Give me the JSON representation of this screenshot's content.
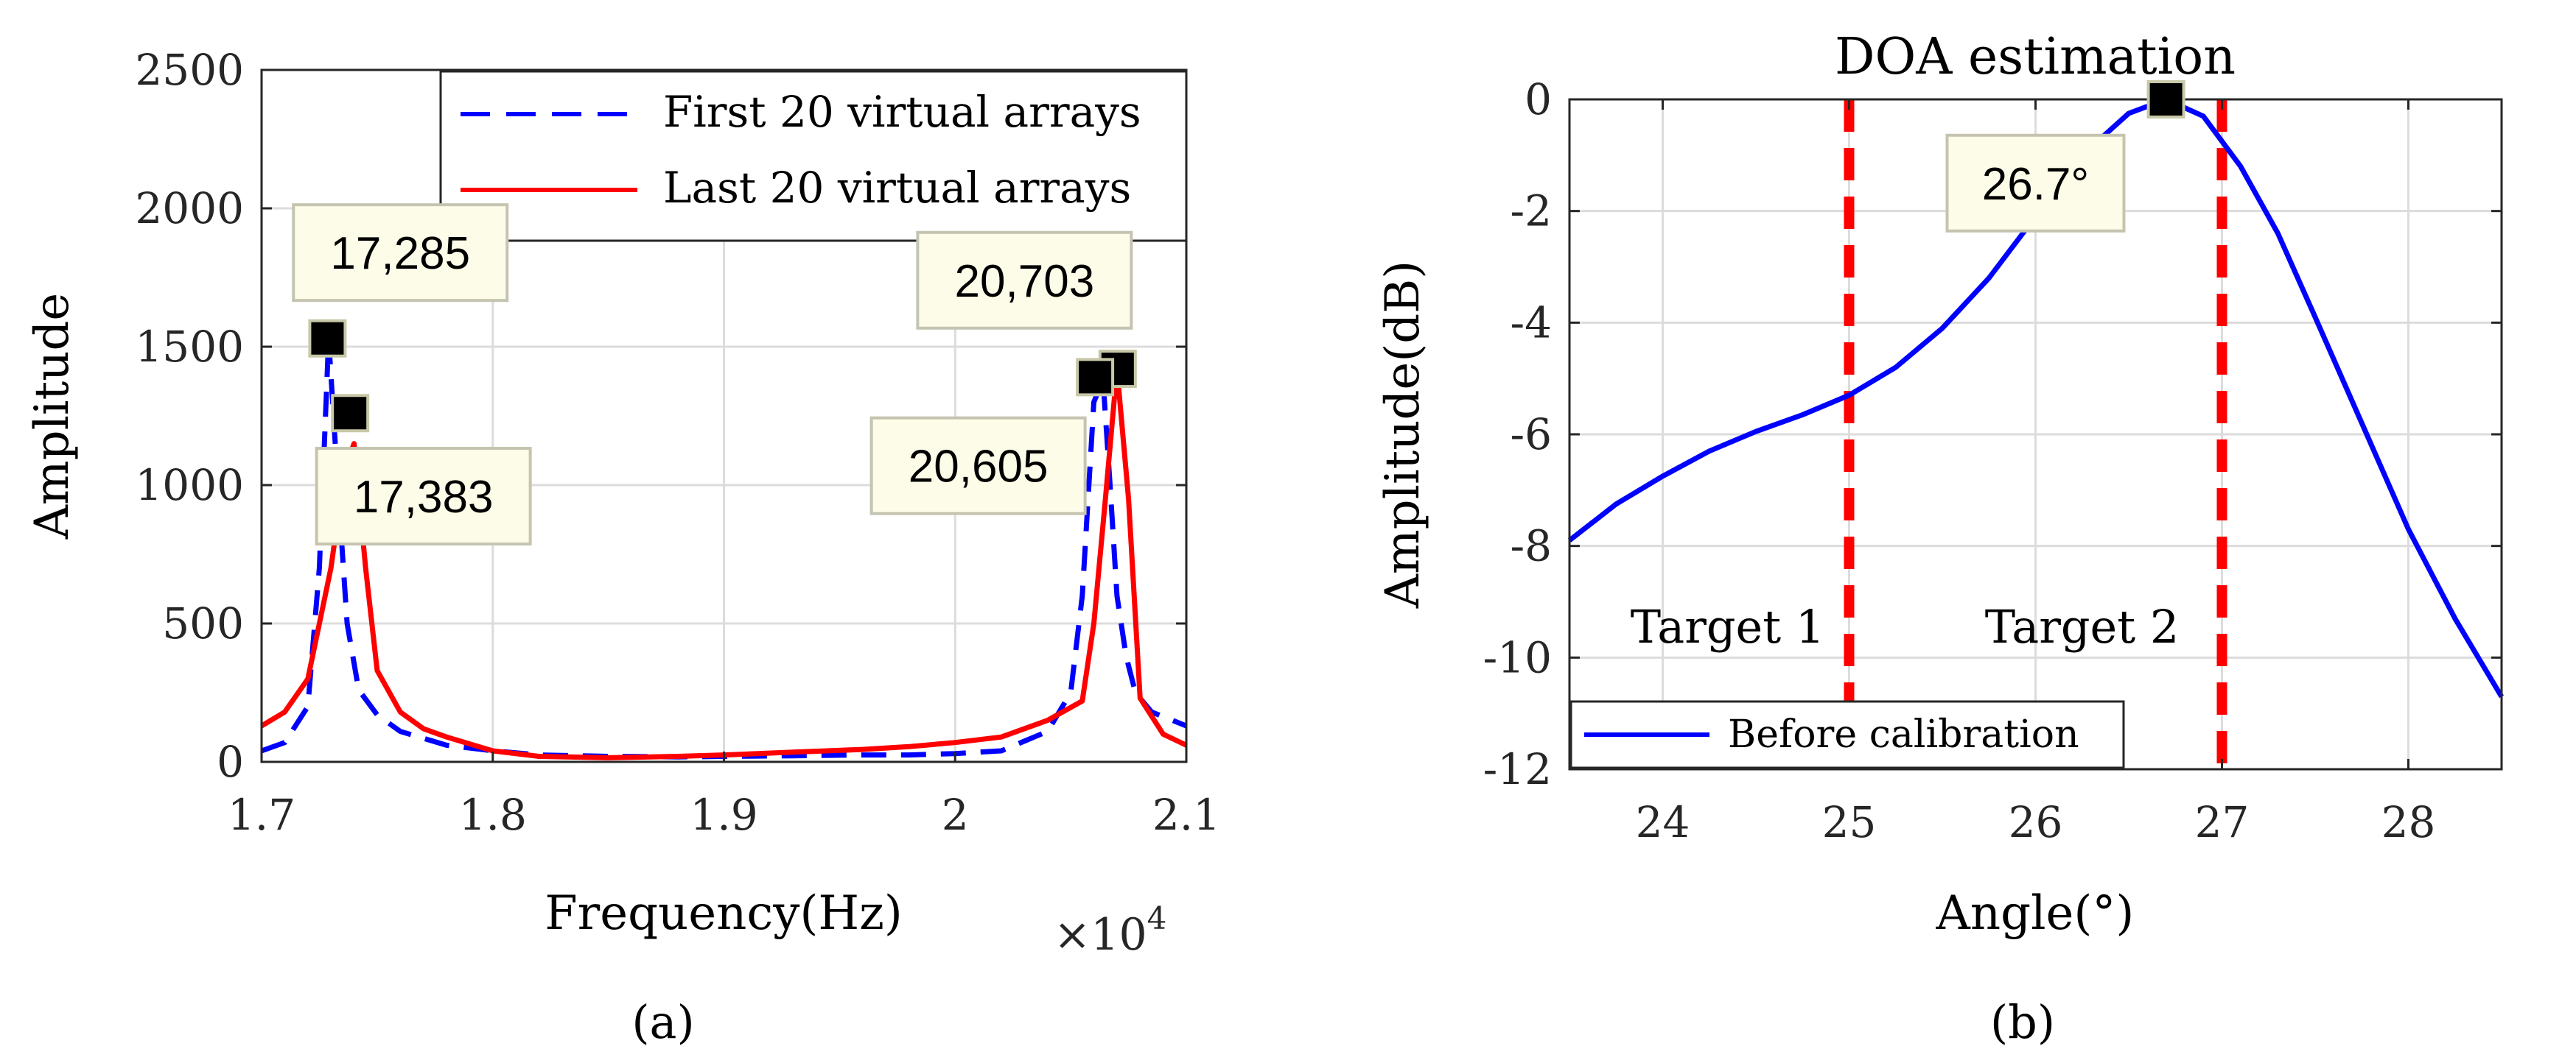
{
  "chart_data": [
    {
      "type": "line",
      "panel_label": "(a)",
      "title": "",
      "xlabel": "Frequency(Hz)",
      "ylabel": "Amplitude",
      "x_multiplier": "×10",
      "x_multiplier_exp": "4",
      "xlim": [
        1.7,
        2.1
      ],
      "ylim": [
        0,
        2500
      ],
      "xticks": [
        1.7,
        1.8,
        1.9,
        2.0,
        2.1
      ],
      "xtick_labels": [
        "1.7",
        "1.8",
        "1.9",
        "2",
        "2.1"
      ],
      "yticks": [
        0,
        500,
        1000,
        1500,
        2000,
        2500
      ],
      "ytick_labels": [
        "0",
        "500",
        "1000",
        "1500",
        "2000",
        "2500"
      ],
      "grid": true,
      "legend_position": "top-right",
      "series": [
        {
          "name": "First 20 virtual arrays",
          "color": "#0000ff",
          "style": "dashed",
          "x": [
            1.7,
            1.71,
            1.72,
            1.725,
            1.729,
            1.733,
            1.737,
            1.742,
            1.75,
            1.76,
            1.78,
            1.8,
            1.82,
            1.85,
            1.88,
            1.9,
            1.93,
            1.96,
            1.98,
            2.0,
            2.02,
            2.04,
            2.05,
            2.055,
            2.06,
            2.064,
            2.067,
            2.07,
            2.074,
            2.078,
            2.085,
            2.1
          ],
          "values": [
            40,
            70,
            200,
            700,
            1530,
            1000,
            500,
            260,
            170,
            110,
            60,
            40,
            25,
            20,
            18,
            20,
            22,
            25,
            25,
            30,
            40,
            110,
            250,
            600,
            1300,
            1380,
            1000,
            600,
            380,
            250,
            180,
            130
          ]
        },
        {
          "name": "Last 20 virtual arrays",
          "color": "#ff0000",
          "style": "solid",
          "x": [
            1.7,
            1.71,
            1.72,
            1.73,
            1.736,
            1.74,
            1.745,
            1.75,
            1.76,
            1.77,
            1.78,
            1.8,
            1.82,
            1.85,
            1.88,
            1.9,
            1.93,
            1.96,
            1.98,
            2.0,
            2.02,
            2.04,
            2.055,
            2.06,
            2.065,
            2.07,
            2.075,
            2.08,
            2.09,
            2.1
          ],
          "values": [
            130,
            180,
            300,
            700,
            1060,
            1150,
            700,
            330,
            180,
            120,
            90,
            40,
            20,
            15,
            20,
            25,
            35,
            45,
            55,
            70,
            90,
            150,
            220,
            500,
            950,
            1420,
            950,
            230,
            100,
            60
          ]
        }
      ],
      "annotations": [
        {
          "label": "17,285",
          "x": 1.7285,
          "y": 1530,
          "box_x": 1.76,
          "box_y": 1840
        },
        {
          "label": "17,383",
          "x": 1.7383,
          "y": 1260,
          "box_x": 1.77,
          "box_y": 960
        },
        {
          "label": "20,703",
          "x": 2.0703,
          "y": 1420,
          "box_x": 2.03,
          "box_y": 1740
        },
        {
          "label": "20,605",
          "x": 2.0605,
          "y": 1390,
          "box_x": 2.01,
          "box_y": 1070
        }
      ]
    },
    {
      "type": "line",
      "panel_label": "(b)",
      "title": "DOA estimation",
      "xlabel": "Angle(°)",
      "ylabel": "Amplitude(dB)",
      "xlim": [
        23.5,
        28.5
      ],
      "ylim": [
        -12,
        0
      ],
      "xticks": [
        24,
        25,
        26,
        27,
        28
      ],
      "xtick_labels": [
        "24",
        "25",
        "26",
        "27",
        "28"
      ],
      "yticks": [
        0,
        -2,
        -4,
        -6,
        -8,
        -10,
        -12
      ],
      "ytick_labels": [
        "0",
        "-2",
        "-4",
        "-6",
        "-8",
        "-10",
        "-12"
      ],
      "grid": true,
      "legend_position": "bottom-left",
      "series": [
        {
          "name": "Before calibration",
          "color": "#0000ff",
          "style": "solid",
          "x": [
            23.5,
            23.75,
            24.0,
            24.25,
            24.5,
            24.75,
            25.0,
            25.25,
            25.5,
            25.75,
            26.0,
            26.25,
            26.5,
            26.7,
            26.9,
            27.1,
            27.3,
            27.5,
            27.75,
            28.0,
            28.25,
            28.5
          ],
          "values": [
            -7.9,
            -7.25,
            -6.75,
            -6.3,
            -5.95,
            -5.65,
            -5.3,
            -4.8,
            -4.1,
            -3.2,
            -2.1,
            -1.0,
            -0.25,
            0,
            -0.3,
            -1.2,
            -2.4,
            -3.9,
            -5.8,
            -7.7,
            -9.3,
            -10.7
          ]
        }
      ],
      "vertical_markers": [
        {
          "x": 25,
          "color": "#ff0000",
          "style": "dashed",
          "label": "Target 1"
        },
        {
          "x": 27,
          "color": "#ff0000",
          "style": "dashed",
          "label": "Target 2"
        }
      ],
      "annotations": [
        {
          "label": "26.7°",
          "x": 26.7,
          "y": 0,
          "box_x": 26.0,
          "box_y": -1.5
        }
      ]
    }
  ]
}
